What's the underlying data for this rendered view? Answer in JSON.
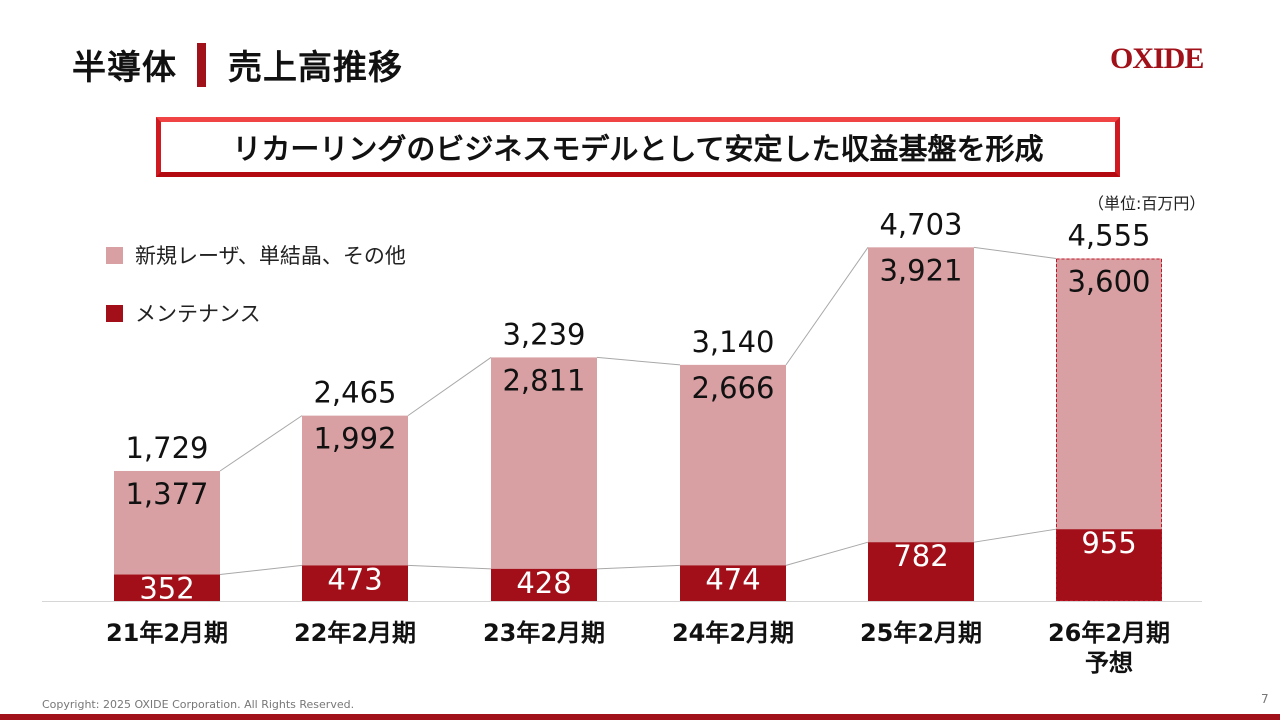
{
  "header": {
    "title_left": "半導体",
    "title_right": "売上高推移",
    "logo": "OXIDE"
  },
  "headline": "リカーリングのビジネスモデルとして安定した収益基盤を形成",
  "unit_label": "（単位:百万円）",
  "legend": [
    {
      "label": "新規レーザ、単結晶、その他",
      "color": "#d8a0a3"
    },
    {
      "label": "メンテナンス",
      "color": "#a20f18"
    }
  ],
  "footer": {
    "copyright": "Copyright: 2025 OXIDE Corporation. All Rights Reserved.",
    "page_number": "7"
  },
  "chart_data": {
    "type": "bar",
    "stacked": true,
    "title": "売上高推移",
    "unit": "百万円",
    "categories": [
      "21年2月期",
      "22年2月期",
      "23年2月期",
      "24年2月期",
      "25年2月期",
      "26年2月期 予想"
    ],
    "category_lines": [
      [
        "21年2月期"
      ],
      [
        "22年2月期"
      ],
      [
        "23年2月期"
      ],
      [
        "24年2月期"
      ],
      [
        "25年2月期"
      ],
      [
        "26年2月期",
        "予想"
      ]
    ],
    "series": [
      {
        "name": "メンテナンス",
        "values": [
          352,
          473,
          428,
          474,
          782,
          955
        ],
        "labels": [
          "352",
          "473",
          "428",
          "474",
          "782",
          "955"
        ],
        "color": "#a20f18"
      },
      {
        "name": "新規レーザ、単結晶、その他",
        "values": [
          1377,
          1992,
          2811,
          2666,
          3921,
          3600
        ],
        "labels": [
          "1,377",
          "1,992",
          "2,811",
          "2,666",
          "3,921",
          "3,600"
        ],
        "color": "#d8a0a3"
      }
    ],
    "totals": [
      1729,
      2465,
      3239,
      3140,
      4703,
      4555
    ],
    "total_labels": [
      "1,729",
      "2,465",
      "3,239",
      "3,140",
      "4,703",
      "4,555"
    ],
    "forecast_index": 5,
    "connector_lines": true,
    "grid": false,
    "legend_position": "top-left"
  }
}
